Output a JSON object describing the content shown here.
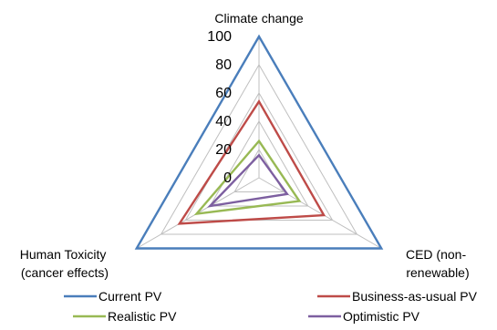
{
  "chart_data": {
    "type": "radar",
    "axes": [
      "Climate change",
      "CED (non-renewable)",
      "Human Toxicity (cancer effects)"
    ],
    "axis_label_lines": {
      "top": [
        "Climate change"
      ],
      "right": [
        "CED (non-",
        "renewable)"
      ],
      "left": [
        "Human Toxicity",
        "(cancer effects)"
      ]
    },
    "ticks": [
      "0",
      "20",
      "40",
      "60",
      "80",
      "100"
    ],
    "ylim": [
      0,
      100
    ],
    "grid": true,
    "legend_position": "bottom",
    "series": [
      {
        "name": "Current PV",
        "color": "#4A7EBB",
        "values": [
          100,
          100,
          100
        ]
      },
      {
        "name": "Business-as-usual PV",
        "color": "#BE4B48",
        "values": [
          54,
          53,
          65
        ]
      },
      {
        "name": "Realistic PV",
        "color": "#98B954",
        "values": [
          26,
          33,
          51
        ]
      },
      {
        "name": "Optimistic PV",
        "color": "#7D5FA0",
        "values": [
          16,
          23,
          40
        ]
      }
    ]
  }
}
